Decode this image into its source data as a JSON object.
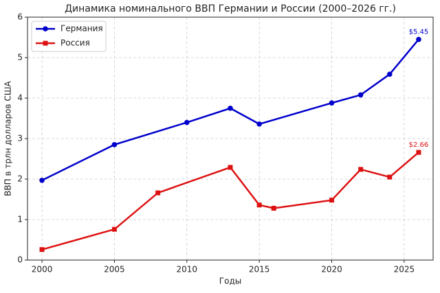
{
  "chart_data": {
    "type": "line",
    "title": "Динамика номинального ВВП Германии и России (2000–2026 гг.)",
    "x_label": "Годы",
    "y_label": "ВВП в трлн долларов США",
    "xlim": [
      1999.0,
      2027.0
    ],
    "xticks": [
      2000,
      2005,
      2010,
      2015,
      2020,
      2025
    ],
    "ylim": [
      0,
      6
    ],
    "yticks": [
      0,
      1,
      2,
      3,
      4,
      5,
      6
    ],
    "grid": true,
    "legend": "upper left",
    "series": [
      {
        "name": "Германия",
        "color": "#0000cc",
        "marker": "circle",
        "x": [
          2000,
          2005,
          2010,
          2013,
          2015,
          2020,
          2022,
          2024,
          2026
        ],
        "values": [
          1.97,
          2.85,
          3.4,
          3.75,
          3.36,
          3.88,
          4.08,
          4.59,
          5.45
        ],
        "value_labels": [
          null,
          null,
          null,
          null,
          null,
          null,
          null,
          null,
          "$5.45"
        ]
      },
      {
        "name": "Россия",
        "color": "#dd1111",
        "marker": "square",
        "x": [
          2000,
          2005,
          2008,
          2013,
          2015,
          2016,
          2020,
          2022,
          2024,
          2026
        ],
        "values": [
          0.26,
          0.76,
          1.66,
          2.29,
          1.36,
          1.28,
          1.48,
          2.24,
          2.05,
          2.66
        ],
        "value_labels": [
          null,
          null,
          null,
          null,
          null,
          null,
          null,
          null,
          null,
          "$2.66"
        ]
      }
    ]
  }
}
